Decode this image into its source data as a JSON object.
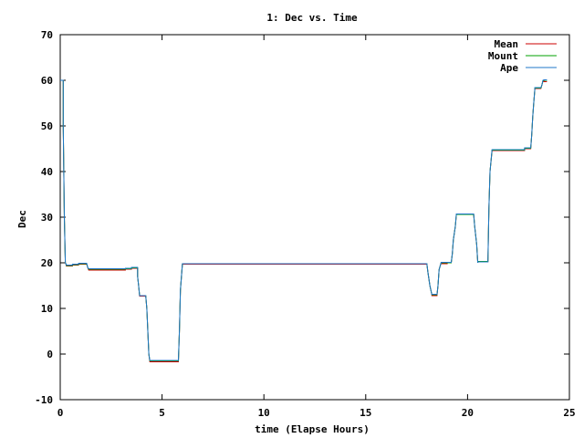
{
  "chart_data": {
    "type": "line",
    "title": "1: Dec vs. Time",
    "xlabel": "time (Elapse Hours)",
    "ylabel": "Dec",
    "xlim": [
      0,
      25
    ],
    "ylim": [
      -10,
      70
    ],
    "xticks": [
      "0",
      "5",
      "10",
      "15",
      "20",
      "25"
    ],
    "yticks": [
      "-10",
      "0",
      "10",
      "20",
      "30",
      "40",
      "50",
      "60",
      "70"
    ],
    "grid": false,
    "legend_position": "top-right",
    "colors": {
      "Mean": "#cc0000",
      "Mount": "#00a000",
      "Ape": "#1f77c8",
      "frame": "#000000"
    },
    "series": [
      {
        "name": "Mean",
        "x": [
          0.0,
          0.15,
          0.15,
          0.2,
          0.25,
          0.3,
          0.3,
          0.6,
          0.6,
          0.9,
          0.9,
          1.3,
          1.35,
          1.4,
          1.4,
          3.2,
          3.2,
          3.5,
          3.5,
          3.8,
          3.8,
          3.85,
          3.9,
          4.2,
          4.25,
          4.3,
          4.35,
          4.4,
          4.4,
          5.8,
          5.85,
          5.9,
          6.0,
          18.0,
          18.05,
          18.15,
          18.25,
          18.25,
          18.5,
          18.55,
          18.6,
          18.7,
          18.7,
          19.0,
          19.0,
          19.2,
          19.25,
          19.3,
          19.4,
          19.45,
          19.45,
          20.3,
          20.35,
          20.45,
          20.5,
          20.5,
          21.0,
          21.05,
          21.1,
          21.2,
          21.2,
          22.8,
          22.8,
          23.1,
          23.15,
          23.2,
          23.25,
          23.3,
          23.3,
          23.6,
          23.65,
          23.7,
          23.75,
          23.75,
          23.9
        ],
        "y": [
          60,
          60,
          50,
          30,
          20,
          19.5,
          19.3,
          19.3,
          19.5,
          19.5,
          19.7,
          19.7,
          19,
          18.4,
          18.4,
          18.4,
          18.6,
          18.6,
          18.8,
          18.8,
          17,
          15,
          12.7,
          12.7,
          10,
          5,
          0,
          -1.7,
          -1.7,
          -1.7,
          5,
          14,
          19.7,
          19.7,
          18,
          15,
          13,
          12.8,
          12.8,
          15,
          18.5,
          20,
          19.8,
          19.8,
          20,
          20,
          22,
          25,
          28,
          30.5,
          30.6,
          30.6,
          28,
          24,
          20,
          20.2,
          20.2,
          32,
          40,
          44.5,
          44.6,
          44.6,
          45,
          45,
          48,
          52,
          55,
          58,
          58.2,
          58.2,
          59,
          59.8,
          60,
          59.7,
          59.7
        ]
      },
      {
        "name": "Mount",
        "x": [
          0.0,
          0.15,
          0.15,
          0.2,
          0.25,
          0.3,
          0.3,
          0.6,
          0.6,
          0.9,
          0.9,
          1.3,
          1.35,
          1.4,
          1.4,
          3.2,
          3.2,
          3.5,
          3.5,
          3.8,
          3.8,
          3.85,
          3.9,
          4.2,
          4.25,
          4.3,
          4.35,
          4.4,
          4.4,
          5.8,
          5.85,
          5.9,
          6.0,
          18.0,
          18.05,
          18.15,
          18.25,
          18.25,
          18.5,
          18.55,
          18.6,
          18.7,
          18.7,
          19.0,
          19.0,
          19.2,
          19.25,
          19.3,
          19.4,
          19.45,
          19.45,
          20.3,
          20.35,
          20.45,
          20.5,
          20.5,
          21.0,
          21.05,
          21.1,
          21.2,
          21.2,
          22.8,
          22.8,
          23.1,
          23.15,
          23.2,
          23.25,
          23.3,
          23.3,
          23.6,
          23.65,
          23.7,
          23.75,
          23.75,
          23.9
        ],
        "y": [
          60,
          60,
          50,
          30,
          20,
          19.6,
          19.4,
          19.4,
          19.6,
          19.6,
          19.8,
          19.8,
          19,
          18.6,
          18.6,
          18.6,
          18.7,
          18.7,
          18.9,
          18.9,
          17,
          15,
          12.8,
          12.8,
          10,
          5,
          0,
          -1.5,
          -1.5,
          -1.5,
          5,
          14,
          19.8,
          19.8,
          18,
          15,
          13,
          13,
          13,
          15,
          18.5,
          20,
          20,
          20,
          20,
          20,
          22,
          25,
          28,
          30.6,
          30.6,
          30.6,
          28,
          24,
          20,
          20.3,
          20.3,
          32,
          40,
          44.6,
          44.7,
          44.7,
          45.1,
          45.1,
          48,
          52,
          55,
          58,
          58.3,
          58.3,
          59,
          59.9,
          60,
          60,
          60
        ]
      },
      {
        "name": "Ape",
        "x": [
          0.0,
          0.15,
          0.15,
          0.2,
          0.25,
          0.3,
          0.3,
          0.6,
          0.6,
          0.9,
          0.9,
          1.3,
          1.35,
          1.4,
          1.4,
          3.2,
          3.2,
          3.5,
          3.5,
          3.8,
          3.8,
          3.85,
          3.9,
          4.2,
          4.25,
          4.3,
          4.35,
          4.4,
          4.4,
          5.8,
          5.85,
          5.9,
          6.0,
          18.0,
          18.05,
          18.15,
          18.25,
          18.25,
          18.5,
          18.55,
          18.6,
          18.7,
          18.7,
          19.0,
          19.0,
          19.2,
          19.25,
          19.3,
          19.4,
          19.45,
          19.45,
          20.3,
          20.35,
          20.45,
          20.5,
          20.5,
          21.0,
          21.05,
          21.1,
          21.2,
          21.2,
          22.8,
          22.8,
          23.1,
          23.15,
          23.2,
          23.25,
          23.3,
          23.3,
          23.6,
          23.65,
          23.7,
          23.75,
          23.75,
          23.9
        ],
        "y": [
          60,
          60,
          50,
          30,
          20,
          19.6,
          19.5,
          19.5,
          19.7,
          19.7,
          19.9,
          19.9,
          19,
          18.7,
          18.7,
          18.7,
          18.8,
          18.8,
          19,
          19,
          17,
          15,
          12.8,
          12.8,
          10,
          5,
          0,
          -1.4,
          -1.4,
          -1.4,
          5,
          14,
          19.8,
          19.8,
          18,
          15,
          13,
          13.1,
          13.1,
          15,
          18.5,
          20,
          20.1,
          20.1,
          20.1,
          20.1,
          22,
          25,
          28,
          30.7,
          30.7,
          30.7,
          28,
          24,
          20,
          20.2,
          20.2,
          32,
          40,
          44.8,
          44.8,
          44.8,
          45.2,
          45.2,
          48,
          52,
          55,
          58,
          58.4,
          58.4,
          59,
          60,
          60.1,
          60.1,
          60.1
        ]
      }
    ]
  }
}
